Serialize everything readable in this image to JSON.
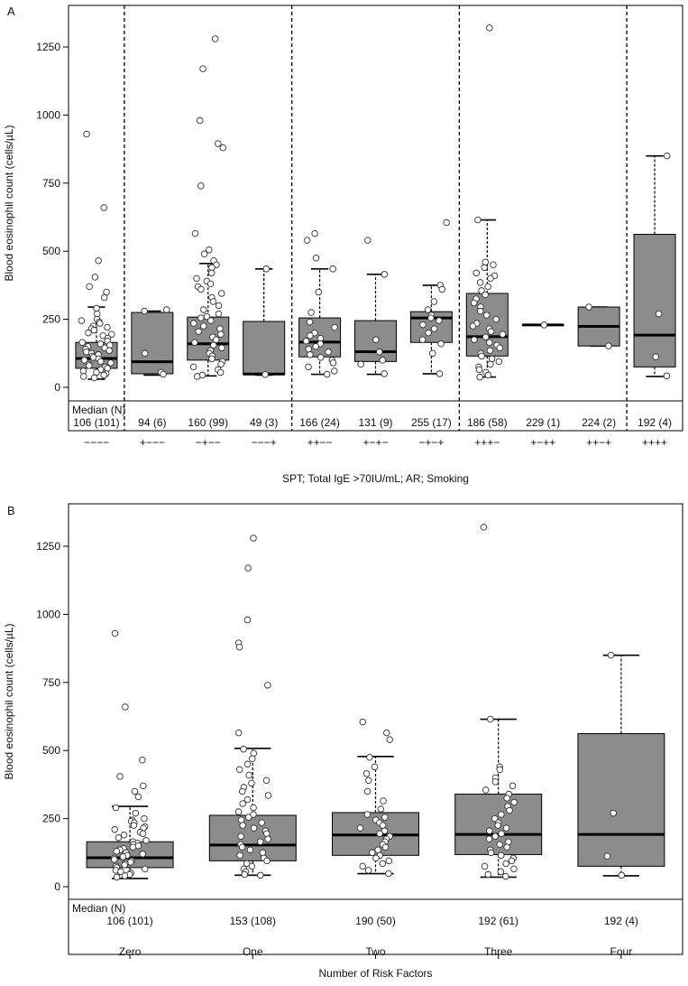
{
  "colors": {
    "box_fill": "#8c8c8c",
    "frame": "#000000",
    "point_fill": "#ffffff"
  },
  "chart_data": [
    {
      "type": "boxplot",
      "panel_label": "A",
      "ylabel": "Blood eosinophil count (cells/µL)",
      "xlabel": "SPT; Total IgE >70IU/mL; AR; Smoking",
      "yticks": [
        0,
        250,
        500,
        750,
        1000,
        1250
      ],
      "ylim": [
        -50,
        1350
      ],
      "median_header": "Median (N)",
      "group_separators_after": [
        1,
        4,
        7,
        10
      ],
      "groups": [
        {
          "category": "−−−−",
          "median_label": "106 (101)",
          "q1": 70,
          "median": 106,
          "q3": 165,
          "whisker_low": 30,
          "whisker_high": 295,
          "points": [
            930,
            660,
            465,
            405,
            370,
            350,
            330,
            290,
            270,
            250,
            245,
            240,
            235,
            225,
            220,
            215,
            210,
            200,
            195,
            190,
            180,
            170,
            165,
            160,
            155,
            150,
            145,
            140,
            135,
            130,
            125,
            120,
            115,
            110,
            105,
            100,
            95,
            90,
            85,
            80,
            75,
            70,
            65,
            60,
            55,
            50,
            45,
            40,
            35
          ]
        },
        {
          "category": "+−−−",
          "median_label": "94 (6)",
          "q1": 50,
          "median": 94,
          "q3": 275,
          "whisker_low": 45,
          "whisker_high": 280,
          "points": [
            285,
            280,
            125,
            55,
            48
          ]
        },
        {
          "category": "−+−−",
          "median_label": "160 (99)",
          "q1": 100,
          "median": 160,
          "q3": 258,
          "whisker_low": 42,
          "whisker_high": 455,
          "points": [
            1280,
            1170,
            980,
            895,
            880,
            740,
            565,
            505,
            490,
            465,
            450,
            440,
            420,
            400,
            390,
            380,
            370,
            360,
            345,
            330,
            315,
            300,
            285,
            270,
            260,
            255,
            245,
            235,
            225,
            215,
            205,
            195,
            185,
            175,
            165,
            155,
            145,
            135,
            125,
            115,
            105,
            95,
            85,
            75,
            65,
            55,
            45,
            40
          ]
        },
        {
          "category": "−−−+",
          "median_label": "49 (3)",
          "q1": 47,
          "median": 49,
          "q3": 242,
          "whisker_low": 45,
          "whisker_high": 435,
          "points": [
            435,
            47
          ]
        },
        {
          "category": "++−−",
          "median_label": "166 (24)",
          "q1": 112,
          "median": 166,
          "q3": 255,
          "whisker_low": 48,
          "whisker_high": 435,
          "points": [
            565,
            540,
            475,
            435,
            350,
            275,
            240,
            220,
            200,
            190,
            180,
            170,
            160,
            150,
            140,
            130,
            120,
            110,
            100,
            90,
            75,
            60,
            48
          ]
        },
        {
          "category": "+−+−",
          "median_label": "131 (9)",
          "q1": 95,
          "median": 131,
          "q3": 245,
          "whisker_low": 48,
          "whisker_high": 415,
          "points": [
            540,
            415,
            175,
            130,
            100,
            85,
            50
          ]
        },
        {
          "category": "−+−+",
          "median_label": "255 (17)",
          "q1": 165,
          "median": 255,
          "q3": 278,
          "whisker_low": 50,
          "whisker_high": 375,
          "points": [
            605,
            375,
            360,
            315,
            285,
            265,
            255,
            245,
            230,
            215,
            200,
            175,
            160,
            125,
            50
          ]
        },
        {
          "category": "+++−",
          "median_label": "186 (58)",
          "q1": 115,
          "median": 186,
          "q3": 345,
          "whisker_low": 38,
          "whisker_high": 615,
          "points": [
            1320,
            615,
            460,
            450,
            440,
            420,
            410,
            400,
            385,
            370,
            355,
            340,
            325,
            310,
            295,
            280,
            265,
            250,
            235,
            225,
            215,
            205,
            195,
            185,
            175,
            165,
            155,
            145,
            135,
            125,
            115,
            105,
            95,
            85,
            75,
            65,
            55,
            45,
            38
          ]
        },
        {
          "category": "+−++",
          "median_label": "229 (1)",
          "q1": 229,
          "median": 229,
          "q3": 229,
          "whisker_low": 229,
          "whisker_high": 229,
          "points": [
            229
          ]
        },
        {
          "category": "++−+",
          "median_label": "224 (2)",
          "q1": 152,
          "median": 224,
          "q3": 295,
          "whisker_low": 152,
          "whisker_high": 295,
          "points": [
            295,
            152
          ]
        },
        {
          "category": "++++",
          "median_label": "192 (4)",
          "q1": 75,
          "median": 192,
          "q3": 562,
          "whisker_low": 40,
          "whisker_high": 850,
          "points": [
            850,
            270,
            112,
            42
          ]
        }
      ]
    },
    {
      "type": "boxplot",
      "panel_label": "B",
      "ylabel": "Blood eosinophil count (cells/µL)",
      "xlabel": "Number of Risk Factors",
      "yticks": [
        0,
        250,
        500,
        750,
        1000,
        1250
      ],
      "ylim": [
        -50,
        1350
      ],
      "median_header": "Median (N)",
      "group_separators_after": [],
      "groups": [
        {
          "category": "Zero",
          "median_label": "106 (101)",
          "q1": 70,
          "median": 106,
          "q3": 165,
          "whisker_low": 30,
          "whisker_high": 295,
          "points": [
            930,
            660,
            465,
            405,
            370,
            350,
            330,
            290,
            270,
            250,
            245,
            240,
            235,
            225,
            220,
            215,
            210,
            200,
            195,
            190,
            180,
            170,
            165,
            160,
            155,
            150,
            145,
            140,
            135,
            130,
            125,
            120,
            115,
            110,
            105,
            100,
            95,
            90,
            85,
            80,
            75,
            70,
            65,
            60,
            55,
            50,
            45,
            40,
            35
          ]
        },
        {
          "category": "One",
          "median_label": "153 (108)",
          "q1": 95,
          "median": 153,
          "q3": 262,
          "whisker_low": 42,
          "whisker_high": 508,
          "points": [
            1280,
            1170,
            980,
            895,
            880,
            740,
            565,
            505,
            490,
            470,
            450,
            430,
            410,
            390,
            380,
            365,
            350,
            335,
            320,
            305,
            290,
            275,
            265,
            255,
            245,
            235,
            225,
            215,
            205,
            195,
            185,
            175,
            165,
            155,
            145,
            135,
            125,
            115,
            105,
            95,
            85,
            75,
            65,
            55,
            45,
            42
          ]
        },
        {
          "category": "Two",
          "median_label": "190 (50)",
          "q1": 115,
          "median": 190,
          "q3": 272,
          "whisker_low": 48,
          "whisker_high": 478,
          "points": [
            605,
            565,
            540,
            475,
            440,
            415,
            390,
            350,
            315,
            285,
            265,
            255,
            245,
            235,
            225,
            215,
            205,
            195,
            185,
            175,
            165,
            155,
            145,
            135,
            125,
            115,
            105,
            95,
            85,
            75,
            60,
            48
          ]
        },
        {
          "category": "Three",
          "median_label": "192 (61)",
          "q1": 118,
          "median": 192,
          "q3": 340,
          "whisker_low": 35,
          "whisker_high": 615,
          "points": [
            1320,
            615,
            440,
            430,
            400,
            385,
            370,
            355,
            340,
            325,
            310,
            295,
            280,
            265,
            250,
            235,
            225,
            215,
            205,
            195,
            185,
            175,
            165,
            155,
            145,
            135,
            125,
            115,
            105,
            95,
            85,
            75,
            65,
            55,
            45,
            38
          ]
        },
        {
          "category": "Four",
          "median_label": "192 (4)",
          "q1": 75,
          "median": 192,
          "q3": 562,
          "whisker_low": 40,
          "whisker_high": 850,
          "points": [
            850,
            270,
            112,
            42
          ]
        }
      ]
    }
  ]
}
